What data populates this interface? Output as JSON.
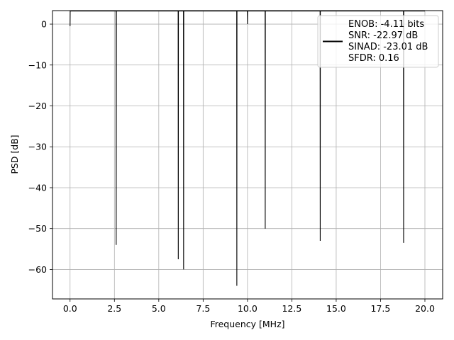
{
  "chart_data": {
    "type": "line",
    "title": "",
    "xlabel": "Frequency [MHz]",
    "ylabel": "PSD [dB]",
    "xlim": [
      -0.99,
      21.0
    ],
    "ylim": [
      -67.2,
      3.3
    ],
    "xticks": [
      0.0,
      2.5,
      5.0,
      7.5,
      10.0,
      12.5,
      15.0,
      17.5,
      20.0
    ],
    "xtick_labels": [
      "0.0",
      "2.5",
      "5.0",
      "7.5",
      "10.0",
      "12.5",
      "15.0",
      "17.5",
      "20.0"
    ],
    "yticks": [
      0,
      -10,
      -20,
      -30,
      -40,
      -50,
      -60
    ],
    "ytick_labels": [
      "0",
      "−10",
      "−20",
      "−30",
      "−40",
      "−50",
      "−60"
    ],
    "grid": true,
    "legend_placement": "top-right",
    "series": [
      {
        "color": "#000000",
        "x_range": [
          0.0,
          20.0
        ],
        "typical_band": [
          -35,
          -8
        ],
        "peaks": [
          {
            "x": 0.0,
            "y": -0.5
          },
          {
            "x": 10.0,
            "y": 0.0
          }
        ],
        "dips": [
          {
            "x": 2.6,
            "y": -54
          },
          {
            "x": 6.1,
            "y": -57.5
          },
          {
            "x": 6.4,
            "y": -60
          },
          {
            "x": 9.4,
            "y": -64
          },
          {
            "x": 18.8,
            "y": -53.5
          },
          {
            "x": 14.1,
            "y": -53
          },
          {
            "x": 11.0,
            "y": -50
          }
        ]
      }
    ],
    "legend": {
      "lines": [
        "ENOB: -4.11 bits",
        "SNR: -22.97 dB",
        "SINAD: -23.01 dB",
        "SFDR: 0.16"
      ]
    }
  }
}
